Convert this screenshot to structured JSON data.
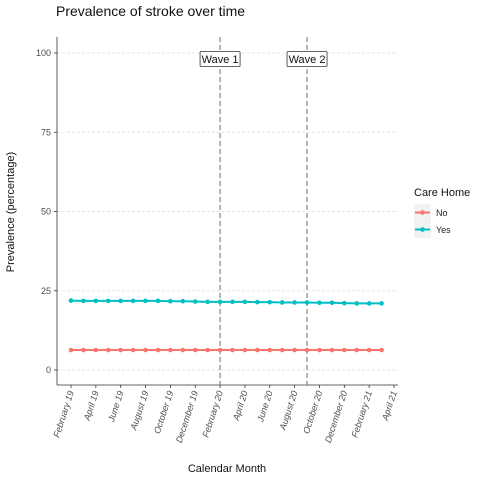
{
  "chart_data": {
    "type": "line",
    "title": "Prevalence of stroke over time",
    "xlabel": "Calendar Month",
    "ylabel": "Prevalence (percentage)",
    "ylim": [
      0,
      100
    ],
    "yticks": [
      0,
      25,
      50,
      75,
      100
    ],
    "categories": [
      "2019-02",
      "2019-03",
      "2019-04",
      "2019-05",
      "2019-06",
      "2019-07",
      "2019-08",
      "2019-09",
      "2019-10",
      "2019-11",
      "2019-12",
      "2020-01",
      "2020-02",
      "2020-03",
      "2020-04",
      "2020-05",
      "2020-06",
      "2020-07",
      "2020-08",
      "2020-09",
      "2020-10",
      "2020-11",
      "2020-12",
      "2021-01",
      "2021-02",
      "2021-03"
    ],
    "x_tick_labels": [
      {
        "date": "2019-02",
        "label": "February 19"
      },
      {
        "date": "2019-04",
        "label": "April 19"
      },
      {
        "date": "2019-06",
        "label": "June 19"
      },
      {
        "date": "2019-08",
        "label": "August 19"
      },
      {
        "date": "2019-10",
        "label": "October 19"
      },
      {
        "date": "2019-12",
        "label": "December 19"
      },
      {
        "date": "2020-02",
        "label": "February 20"
      },
      {
        "date": "2020-04",
        "label": "April 20"
      },
      {
        "date": "2020-06",
        "label": "June 20"
      },
      {
        "date": "2020-08",
        "label": "August 20"
      },
      {
        "date": "2020-10",
        "label": "October 20"
      },
      {
        "date": "2020-12",
        "label": "December 20"
      },
      {
        "date": "2021-02",
        "label": "February 21"
      },
      {
        "date": "2021-04",
        "label": "April 21"
      }
    ],
    "series": [
      {
        "name": "No",
        "color": "#F8766D",
        "values": [
          6.3,
          6.3,
          6.3,
          6.3,
          6.3,
          6.3,
          6.3,
          6.3,
          6.3,
          6.3,
          6.3,
          6.3,
          6.3,
          6.3,
          6.3,
          6.3,
          6.3,
          6.3,
          6.3,
          6.3,
          6.3,
          6.3,
          6.3,
          6.3,
          6.3,
          6.3
        ]
      },
      {
        "name": "Yes",
        "color": "#00BFC4",
        "values": [
          21.9,
          21.8,
          21.8,
          21.8,
          21.8,
          21.8,
          21.8,
          21.8,
          21.7,
          21.7,
          21.6,
          21.5,
          21.5,
          21.5,
          21.5,
          21.4,
          21.4,
          21.3,
          21.3,
          21.3,
          21.2,
          21.2,
          21.1,
          21.0,
          21.0,
          21.0
        ]
      }
    ],
    "annotations": [
      {
        "date": "2020-02",
        "label": "Wave 1"
      },
      {
        "date": "2020-09",
        "label": "Wave 2"
      }
    ],
    "legend": {
      "title": "Care Home",
      "position": "right"
    },
    "grid": true
  }
}
